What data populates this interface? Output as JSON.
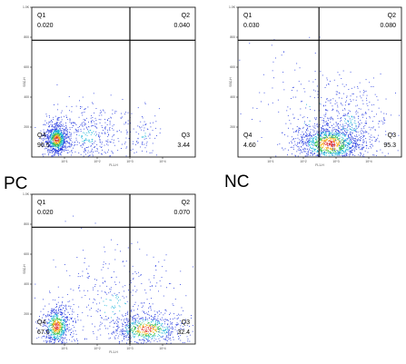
{
  "chart_data": [
    {
      "type": "scatter",
      "xlabel": "FL1-H",
      "ylabel": "SSC-H",
      "xscale": "log",
      "xlim": [
        1,
        100000
      ],
      "ylim": [
        0,
        1000
      ],
      "x_ticks": [
        "10^1",
        "10^2",
        "10^3",
        "10^4"
      ],
      "y_ticks": [
        "200",
        "400",
        "600",
        "800",
        "1.0K"
      ],
      "gate_x": 1000,
      "gate_y": 780,
      "quadrants": [
        {
          "name": "Q1",
          "value": "0.020"
        },
        {
          "name": "Q2",
          "value": "0.040"
        },
        {
          "name": "Q3",
          "value": "3.44"
        },
        {
          "name": "Q4",
          "value": "96.5"
        }
      ],
      "tag": "PC"
    },
    {
      "type": "scatter",
      "xlabel": "FL1-H",
      "ylabel": "SSC-H",
      "xscale": "log",
      "xlim": [
        1,
        100000
      ],
      "ylim": [
        0,
        1000
      ],
      "x_ticks": [
        "10^1",
        "10^2",
        "10^3",
        "10^4"
      ],
      "y_ticks": [
        "200",
        "400",
        "600",
        "800",
        "1.0K"
      ],
      "gate_x": 300,
      "gate_y": 780,
      "quadrants": [
        {
          "name": "Q1",
          "value": "0.030"
        },
        {
          "name": "Q2",
          "value": "0.080"
        },
        {
          "name": "Q3",
          "value": "95.3"
        },
        {
          "name": "Q4",
          "value": "4.60"
        }
      ],
      "tag": "NC"
    },
    {
      "type": "scatter",
      "xlabel": "FL1-H",
      "ylabel": "SSC-H",
      "xscale": "log",
      "xlim": [
        1,
        100000
      ],
      "ylim": [
        0,
        1000
      ],
      "x_ticks": [
        "10^1",
        "10^2",
        "10^3",
        "10^4"
      ],
      "y_ticks": [
        "200",
        "400",
        "600",
        "800",
        "1.0K"
      ],
      "gate_x": 1000,
      "gate_y": 780,
      "quadrants": [
        {
          "name": "Q1",
          "value": "0.020"
        },
        {
          "name": "Q2",
          "value": "0.070"
        },
        {
          "name": "Q3",
          "value": "32.4"
        },
        {
          "name": "Q4",
          "value": "67.6"
        }
      ],
      "tag": ""
    }
  ]
}
